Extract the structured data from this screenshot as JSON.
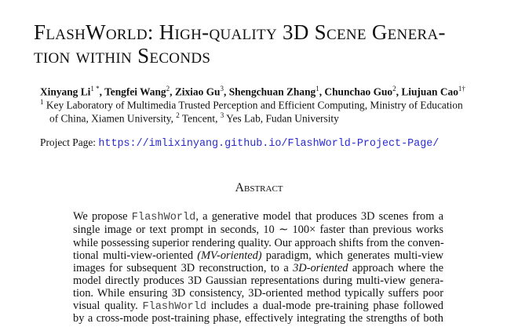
{
  "title": {
    "line1": "FlashWorld: High-quality 3D Scene Genera-",
    "line2": "tion within Seconds"
  },
  "authors": [
    {
      "name": "Xinyang Li",
      "sup": "1 *"
    },
    {
      "name": "Tengfei Wang",
      "sup": "2"
    },
    {
      "name": "Zixiao Gu",
      "sup": "3"
    },
    {
      "name": "Shengchuan Zhang",
      "sup": "1"
    },
    {
      "name": "Chunchao Guo",
      "sup": "2"
    },
    {
      "name": "Liujuan Cao",
      "sup": "1†"
    }
  ],
  "affiliations": {
    "line1_sup": "1",
    "line1": " Key Laboratory of Multimedia Trusted Perception and Efficient Computing, Ministry of Education",
    "line2a": "of China, Xiamen University, ",
    "sup2": "2",
    "line2b": " Tencent, ",
    "sup3": "3",
    "line2c": " Yes Lab, Fudan University"
  },
  "project": {
    "label": "Project Page: ",
    "url": "https://imlixinyang.github.io/FlashWorld-Project-Page/"
  },
  "abstract": {
    "heading": "Abstract",
    "l1a": "We propose ",
    "l1m": "FlashWorld",
    "l1b": ", a generative model that produces 3D scenes from a",
    "l2": "single image or text prompt in seconds, 10 ∼ 100× faster than previous works",
    "l3": "while possessing superior rendering quality. Our approach shifts from the conven-",
    "l4a": "tional multi-view-oriented ",
    "l4i": "(MV-oriented)",
    "l4b": " paradigm, which generates multi-view",
    "l5a": "images for subsequent 3D reconstruction, to a ",
    "l5i": "3D-oriented",
    "l5b": " approach where the",
    "l6": "model directly produces 3D Gaussian representations during multi-view genera-",
    "l7": "tion. While ensuring 3D consistency, 3D-oriented method typically suffers poor",
    "l8a": "visual quality. ",
    "l8m": "FlashWorld",
    "l8b": " includes a dual-mode pre-training phase followed",
    "l9": "by a cross-mode post-training phase, effectively integrating the strengths of both"
  }
}
